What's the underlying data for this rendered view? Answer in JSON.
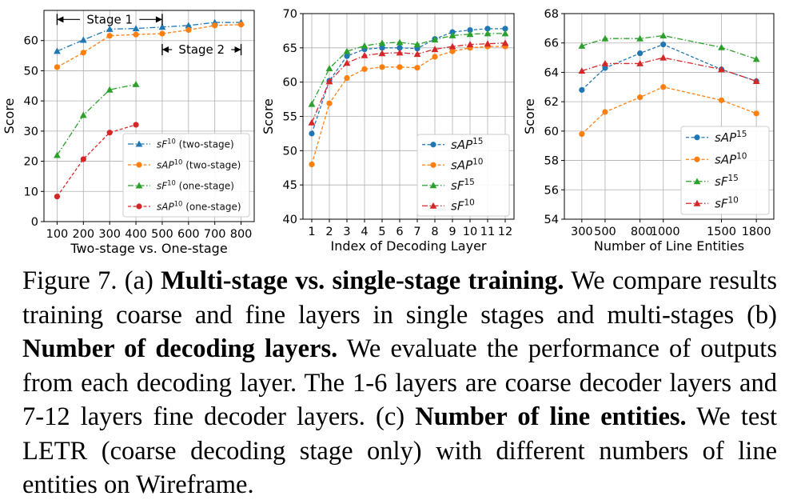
{
  "chart_data": [
    {
      "type": "line",
      "xlabel": "Two-stage vs. One-stage",
      "ylabel": "Score",
      "xlim": [
        50,
        850
      ],
      "ylim": [
        0,
        70
      ],
      "xticks": [
        100,
        200,
        300,
        400,
        500,
        600,
        700,
        800
      ],
      "yticks": [
        0,
        10,
        20,
        30,
        40,
        50,
        60
      ],
      "grid": true,
      "legend_position": "lower-right",
      "annotations": [
        {
          "text": "Stage 1",
          "x_from": 100,
          "x_to": 500,
          "y": 67
        },
        {
          "text": "Stage 2",
          "x_from": 500,
          "x_to": 800,
          "y": 57
        }
      ],
      "series": [
        {
          "name_prefix": "sF",
          "name_sup": "10",
          "name_suffix": " (two-stage)",
          "color": "#1f77b4",
          "marker": "triangle",
          "dash": "dashdot",
          "x": [
            100,
            200,
            300,
            400,
            500,
            600,
            700,
            800
          ],
          "values": [
            56.5,
            60.2,
            63.8,
            64.0,
            64.5,
            65.0,
            66.0,
            66.0
          ]
        },
        {
          "name_prefix": "sAP",
          "name_sup": "10",
          "name_suffix": " (two-stage)",
          "color": "#ff7f0e",
          "marker": "circle",
          "dash": "dashed",
          "x": [
            100,
            200,
            300,
            400,
            500,
            600,
            700,
            800
          ],
          "values": [
            51.2,
            56.0,
            61.6,
            62.0,
            62.3,
            63.5,
            65.0,
            65.3
          ]
        },
        {
          "name_prefix": "sF",
          "name_sup": "10",
          "name_suffix": " (one-stage)",
          "color": "#2ca02c",
          "marker": "triangle",
          "dash": "dashdot",
          "x": [
            100,
            200,
            300,
            400
          ],
          "values": [
            22.0,
            35.3,
            43.7,
            45.5
          ]
        },
        {
          "name_prefix": "sAP",
          "name_sup": "10",
          "name_suffix": " (one-stage)",
          "color": "#d62728",
          "marker": "circle",
          "dash": "dashed",
          "x": [
            100,
            200,
            300,
            400
          ],
          "values": [
            8.3,
            20.7,
            29.5,
            32.1
          ]
        }
      ]
    },
    {
      "type": "line",
      "xlabel": "Index of Decoding Layer",
      "ylabel": "Score",
      "xlim": [
        0.5,
        12.5
      ],
      "ylim": [
        40,
        70
      ],
      "xticks": [
        1,
        2,
        3,
        4,
        5,
        6,
        7,
        8,
        9,
        10,
        11,
        12
      ],
      "yticks": [
        40,
        45,
        50,
        55,
        60,
        65,
        70
      ],
      "grid": true,
      "legend_position": "lower-right",
      "series": [
        {
          "name_prefix": "sAP",
          "name_sup": "15",
          "name_suffix": "",
          "color": "#1f77b4",
          "marker": "circle",
          "dash": "dashed",
          "x": [
            1,
            2,
            3,
            4,
            5,
            6,
            7,
            8,
            9,
            10,
            11,
            12
          ],
          "values": [
            52.5,
            60.2,
            63.8,
            64.8,
            65.0,
            65.0,
            64.9,
            66.3,
            67.3,
            67.6,
            67.8,
            67.8
          ]
        },
        {
          "name_prefix": "sAP",
          "name_sup": "10",
          "name_suffix": "",
          "color": "#ff7f0e",
          "marker": "circle",
          "dash": "dashed",
          "x": [
            1,
            2,
            3,
            4,
            5,
            6,
            7,
            8,
            9,
            10,
            11,
            12
          ],
          "values": [
            48.0,
            56.9,
            60.6,
            61.9,
            62.2,
            62.2,
            62.1,
            63.7,
            64.5,
            65.0,
            65.2,
            65.2
          ]
        },
        {
          "name_prefix": "sF",
          "name_sup": "15",
          "name_suffix": "",
          "color": "#2ca02c",
          "marker": "triangle",
          "dash": "dashdot",
          "x": [
            1,
            2,
            3,
            4,
            5,
            6,
            7,
            8,
            9,
            10,
            11,
            12
          ],
          "values": [
            56.8,
            62.0,
            64.5,
            65.3,
            65.7,
            65.8,
            65.5,
            66.2,
            66.8,
            67.0,
            67.1,
            67.1
          ]
        },
        {
          "name_prefix": "sF",
          "name_sup": "10",
          "name_suffix": "",
          "color": "#d62728",
          "marker": "triangle",
          "dash": "dashdot",
          "x": [
            1,
            2,
            3,
            4,
            5,
            6,
            7,
            8,
            9,
            10,
            11,
            12
          ],
          "values": [
            54.1,
            60.1,
            62.8,
            63.9,
            64.2,
            64.3,
            64.1,
            64.8,
            65.2,
            65.5,
            65.6,
            65.7
          ]
        }
      ]
    },
    {
      "type": "line",
      "xlabel": "Number of Line Entities",
      "ylabel": "Score",
      "xlim": [
        150,
        1950
      ],
      "ylim": [
        54,
        68
      ],
      "xticks": [
        300,
        500,
        800,
        1000,
        1500,
        1800
      ],
      "xtick_labels": [
        "300",
        "500",
        "800",
        "1000",
        "1500",
        "1800"
      ],
      "yticks": [
        54,
        56,
        58,
        60,
        62,
        64,
        66,
        68
      ],
      "grid": true,
      "legend_position": "lower-right",
      "series": [
        {
          "name_prefix": "sAP",
          "name_sup": "15",
          "name_suffix": "",
          "color": "#1f77b4",
          "marker": "circle",
          "dash": "dashed",
          "x": [
            300,
            500,
            800,
            1000,
            1500,
            1800
          ],
          "values": [
            62.8,
            64.3,
            65.3,
            65.9,
            64.2,
            63.4
          ]
        },
        {
          "name_prefix": "sAP",
          "name_sup": "10",
          "name_suffix": "",
          "color": "#ff7f0e",
          "marker": "circle",
          "dash": "dashed",
          "x": [
            300,
            500,
            800,
            1000,
            1500,
            1800
          ],
          "values": [
            59.8,
            61.3,
            62.3,
            63.0,
            62.1,
            61.2
          ]
        },
        {
          "name_prefix": "sF",
          "name_sup": "15",
          "name_suffix": "",
          "color": "#2ca02c",
          "marker": "triangle",
          "dash": "dashdot",
          "x": [
            300,
            500,
            800,
            1000,
            1500,
            1800
          ],
          "values": [
            65.8,
            66.3,
            66.3,
            66.5,
            65.7,
            64.9
          ]
        },
        {
          "name_prefix": "sF",
          "name_sup": "10",
          "name_suffix": "",
          "color": "#d62728",
          "marker": "triangle",
          "dash": "dashdot",
          "x": [
            300,
            500,
            800,
            1000,
            1500,
            1800
          ],
          "values": [
            64.1,
            64.6,
            64.6,
            65.0,
            64.2,
            63.4
          ]
        }
      ]
    }
  ],
  "caption": {
    "label": "Figure 7. (a) ",
    "a_title": "Multi-stage vs.  single-stage training.",
    "a_text": " We compare results training coarse and fine layers in single stages and multi-stages (b) ",
    "b_title": "Number of decoding layers.",
    "b_text": " We evaluate the performance of outputs from each decoding layer. The 1-6 layers are coarse decoder layers and 7-12 layers fine decoder layers. (c) ",
    "c_title": "Number of line entities.",
    "c_text": " We test LETR (coarse decoding stage only) with different numbers of line entities on Wireframe."
  }
}
